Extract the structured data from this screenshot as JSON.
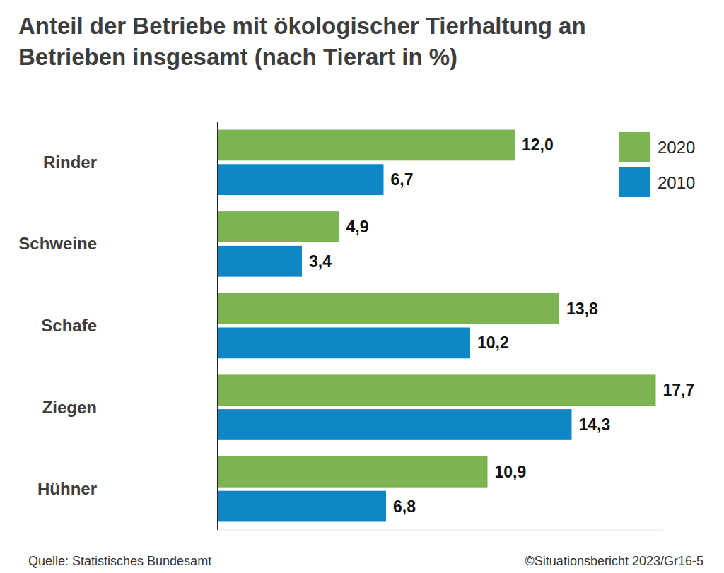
{
  "chart_data": {
    "type": "bar",
    "orientation": "horizontal",
    "title": "Anteil der Betriebe mit ökologischer Tierhaltung an Betrieben insgesamt (nach Tierart in %)",
    "categories": [
      "Rinder",
      "Schweine",
      "Schafe",
      "Ziegen",
      "Hühner"
    ],
    "series": [
      {
        "name": "2020",
        "color": "#7cb452",
        "values": [
          12.0,
          4.9,
          13.8,
          17.7,
          10.9
        ],
        "value_labels": [
          "12,0",
          "4,9",
          "13,8",
          "17,7",
          "10,9"
        ]
      },
      {
        "name": "2010",
        "color": "#0f86c6",
        "values": [
          6.7,
          3.4,
          10.2,
          14.3,
          6.8
        ],
        "value_labels": [
          "6,7",
          "3,4",
          "10,2",
          "14,3",
          "6,8"
        ]
      }
    ],
    "xlim": [
      0,
      18
    ],
    "tick_labels": false,
    "grid": false,
    "data_labels": true,
    "legend": "top-right",
    "source": "Quelle: Statistisches Bundesamt",
    "credit": "©Situationsbericht 2023/Gr16-5"
  }
}
